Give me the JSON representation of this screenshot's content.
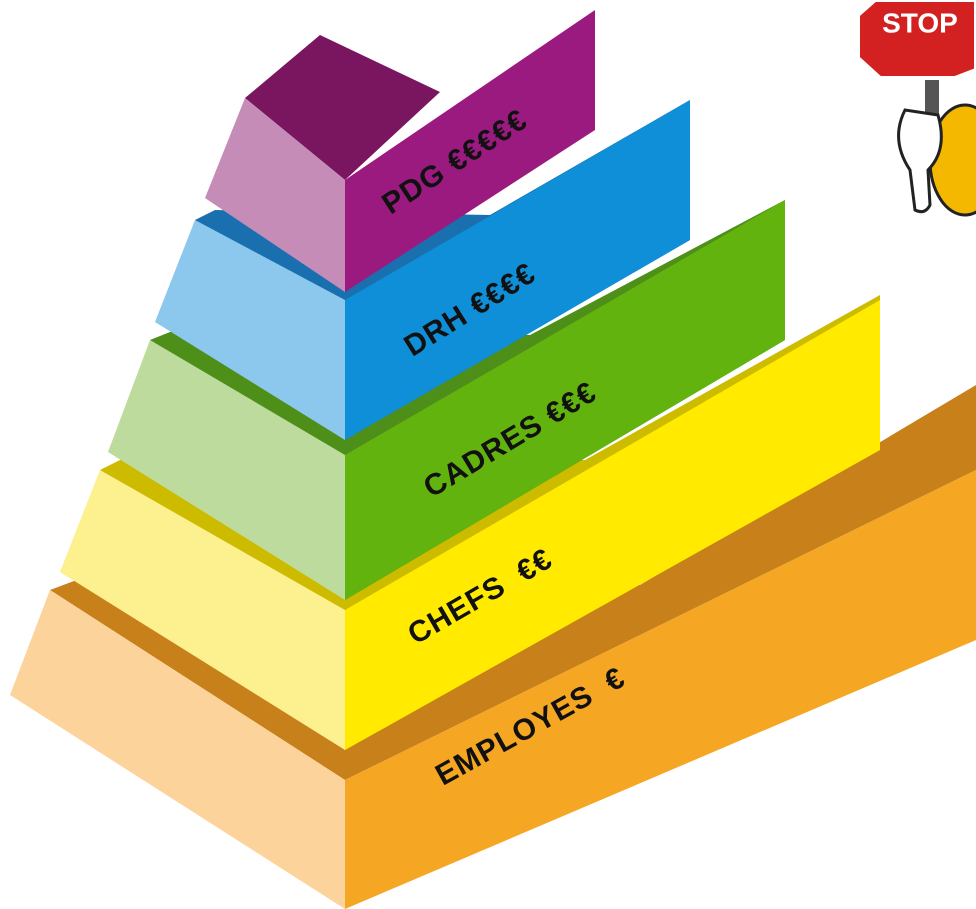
{
  "levels": [
    {
      "label": "PDG €€€€€"
    },
    {
      "label": "DRH €€€€"
    },
    {
      "label": "CADRES €€€"
    },
    {
      "label": "CHEFS  €€"
    },
    {
      "label": "EMPLOYES  €"
    }
  ],
  "sign": {
    "text": "STOP"
  }
}
